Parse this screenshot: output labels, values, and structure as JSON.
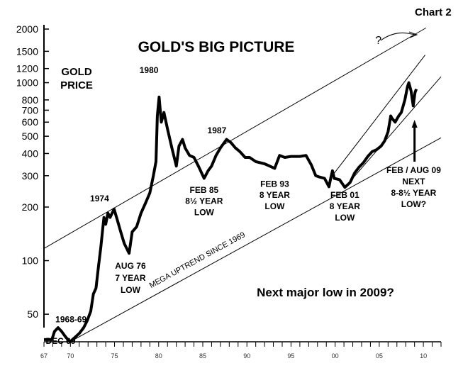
{
  "chart_data": {
    "type": "line",
    "title": "GOLD'S BIG PICTURE",
    "corner_label": "Chart 2",
    "series_label_lines": [
      "GOLD",
      "PRICE"
    ],
    "subtitle": "Next major low in 2009?",
    "yscale": "log",
    "ylim": [
      35,
      2000
    ],
    "xlim": [
      1967,
      2012
    ],
    "yticks": [
      {
        "value": 2000,
        "label": "2000"
      },
      {
        "value": 1500,
        "label": "1500"
      },
      {
        "value": 1200,
        "label": "1200"
      },
      {
        "value": 1000,
        "label": "1000"
      },
      {
        "value": 800,
        "label": "800"
      },
      {
        "value": 700,
        "label": "700"
      },
      {
        "value": 600,
        "label": "600"
      },
      {
        "value": 500,
        "label": "500"
      },
      {
        "value": 400,
        "label": "400"
      },
      {
        "value": 300,
        "label": "300"
      },
      {
        "value": 200,
        "label": "200"
      },
      {
        "value": 100,
        "label": "100"
      },
      {
        "value": 50,
        "label": "50"
      }
    ],
    "xticks": [
      {
        "value": 1967,
        "label": "67"
      },
      {
        "value": 1970,
        "label": "70"
      },
      {
        "value": 1975,
        "label": "75"
      },
      {
        "value": 1980,
        "label": "80"
      },
      {
        "value": 1985,
        "label": "85"
      },
      {
        "value": 1990,
        "label": "90"
      },
      {
        "value": 1995,
        "label": "95"
      },
      {
        "value": 2000,
        "label": "00"
      },
      {
        "value": 2005,
        "label": "05"
      },
      {
        "value": 2010,
        "label": "10"
      }
    ],
    "series": [
      {
        "x": [
          1967.0,
          1967.9,
          1968.2,
          1968.6,
          1969.0,
          1969.5,
          1969.96,
          1970.5,
          1971.0,
          1971.5,
          1971.9,
          1972.3,
          1972.6,
          1972.9,
          1973.2,
          1973.45,
          1973.65,
          1973.8,
          1974.0,
          1974.25,
          1974.5,
          1974.95,
          1975.3,
          1975.7,
          1976.1,
          1976.65,
          1977.0,
          1977.5,
          1978.0,
          1978.5,
          1979.0,
          1979.4,
          1979.7,
          1979.85,
          1980.05,
          1980.3,
          1980.6,
          1981.0,
          1981.5,
          1982.0,
          1982.3,
          1982.7,
          1983.0,
          1983.5,
          1984.0,
          1984.5,
          1985.15,
          1985.6,
          1986.0,
          1986.5,
          1987.0,
          1987.7,
          1988.2,
          1988.7,
          1989.2,
          1989.8,
          1990.3,
          1991.0,
          1992.0,
          1993.15,
          1993.7,
          1994.3,
          1995.0,
          1996.0,
          1996.7,
          1997.3,
          1997.8,
          1998.2,
          1998.8,
          1999.3,
          1999.5,
          1999.7,
          1999.9,
          2000.5,
          2001.1,
          2001.7,
          2002.2,
          2002.7,
          2003.2,
          2003.7,
          2004.2,
          2004.7,
          2005.2,
          2005.6,
          2006.0,
          2006.3,
          2006.45,
          2006.8,
          2007.2,
          2007.5,
          2007.9,
          2008.2,
          2008.35,
          2008.6,
          2008.85,
          2009.05,
          2009.2
        ],
        "values": [
          36,
          36,
          40,
          42,
          40,
          37,
          35,
          37,
          39,
          42,
          46,
          52,
          65,
          70,
          95,
          120,
          150,
          175,
          160,
          185,
          175,
          195,
          170,
          145,
          125,
          110,
          145,
          155,
          185,
          210,
          240,
          300,
          360,
          650,
          830,
          600,
          680,
          550,
          430,
          340,
          440,
          480,
          430,
          390,
          380,
          340,
          290,
          320,
          340,
          390,
          430,
          480,
          460,
          430,
          410,
          380,
          380,
          360,
          350,
          330,
          390,
          380,
          385,
          385,
          390,
          345,
          300,
          295,
          290,
          260,
          290,
          320,
          290,
          285,
          258,
          275,
          310,
          335,
          355,
          385,
          410,
          420,
          440,
          470,
          530,
          650,
          630,
          600,
          650,
          680,
          800,
          950,
          1000,
          900,
          740,
          880,
          920
        ]
      }
    ],
    "annotations": [
      {
        "text": "1968-69",
        "x": 1968.3,
        "y": 45
      },
      {
        "text": "DEC 69",
        "x": 1967.2,
        "y": 34
      },
      {
        "text": "1974",
        "x": 1973.3,
        "y": 215
      },
      {
        "text": "AUG 76",
        "x": 1976.8,
        "y": 90
      },
      {
        "text": "7 YEAR",
        "x": 1976.8,
        "y": 77
      },
      {
        "text": "LOW",
        "x": 1976.8,
        "y": 66
      },
      {
        "text": "1980",
        "x": 1978.9,
        "y": 1130
      },
      {
        "text": "FEB 85",
        "x": 1985.15,
        "y": 240
      },
      {
        "text": "8½ YEAR",
        "x": 1985.15,
        "y": 208
      },
      {
        "text": "LOW",
        "x": 1985.15,
        "y": 180
      },
      {
        "text": "1987",
        "x": 1986.6,
        "y": 520
      },
      {
        "text": "FEB 93",
        "x": 1993.15,
        "y": 260
      },
      {
        "text": "8 YEAR",
        "x": 1993.15,
        "y": 225
      },
      {
        "text": "LOW",
        "x": 1993.15,
        "y": 195
      },
      {
        "text": "FEB 01",
        "x": 2001.1,
        "y": 225
      },
      {
        "text": "8 YEAR",
        "x": 2001.1,
        "y": 195
      },
      {
        "text": "LOW",
        "x": 2001.1,
        "y": 168
      },
      {
        "text": "FEB / AUG 09",
        "x": 2008.9,
        "y": 310
      },
      {
        "text": "NEXT",
        "x": 2008.9,
        "y": 268
      },
      {
        "text": "8-8½ YEAR",
        "x": 2008.9,
        "y": 232
      },
      {
        "text": "LOW?",
        "x": 2008.9,
        "y": 200
      },
      {
        "text": "?",
        "x": 2004.9,
        "y": 1650
      }
    ],
    "trendlines": [
      {
        "name": "upper",
        "from": [
          1967,
          117
        ],
        "to": [
          2010.3,
          2030
        ]
      },
      {
        "name": "lower",
        "from": [
          1969.96,
          35
        ],
        "to": [
          2012.0,
          490
        ]
      },
      {
        "name": "channel-low",
        "from": [
          2001.1,
          258
        ],
        "to": [
          2012.0,
          1080
        ]
      },
      {
        "name": "channel-high",
        "from": [
          1999.9,
          310
        ],
        "to": [
          2010.2,
          1430
        ]
      }
    ],
    "trend_label": {
      "text": "MEGA UPTREND SINCE 1969",
      "x": 1984.5,
      "y": 98
    }
  }
}
